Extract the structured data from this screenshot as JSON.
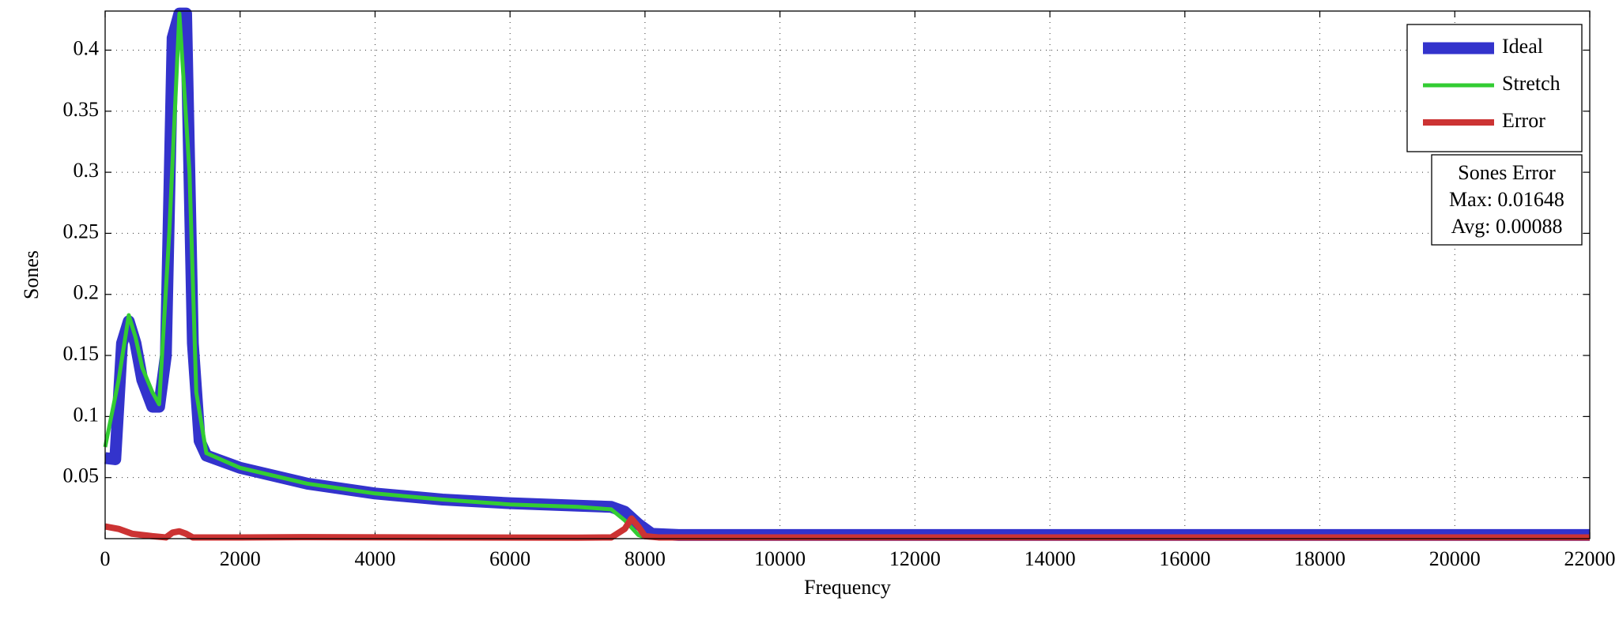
{
  "chart_data": {
    "type": "line",
    "xlabel": "Frequency",
    "ylabel": "Sones",
    "xlim": [
      0,
      22000
    ],
    "xticks": [
      0,
      2000,
      4000,
      6000,
      8000,
      10000,
      12000,
      14000,
      16000,
      18000,
      20000,
      22000
    ],
    "ylim": [
      0,
      0.432
    ],
    "yticks": [
      0.05,
      0.1,
      0.15,
      0.2,
      0.25,
      0.3,
      0.35,
      0.4
    ],
    "grid": true,
    "legend": "upper right",
    "annotation": {
      "lines": [
        "Sones Error",
        "Max: 0.01648",
        "Avg: 0.00088"
      ]
    },
    "series": [
      {
        "name": "Ideal",
        "color": "#3333cc",
        "width": 15,
        "x": [
          0,
          150,
          250,
          350,
          450,
          550,
          700,
          800,
          900,
          1000,
          1100,
          1200,
          1300,
          1400,
          1500,
          2000,
          3000,
          4000,
          5000,
          6000,
          7000,
          7500,
          7700,
          7900,
          8100,
          8500,
          22000
        ],
        "values": [
          0.066,
          0.065,
          0.16,
          0.178,
          0.16,
          0.13,
          0.108,
          0.108,
          0.15,
          0.41,
          0.43,
          0.43,
          0.16,
          0.08,
          0.068,
          0.058,
          0.045,
          0.037,
          0.032,
          0.029,
          0.027,
          0.026,
          0.022,
          0.012,
          0.004,
          0.003,
          0.003
        ]
      },
      {
        "name": "Stretch",
        "color": "#33cc33",
        "width": 5,
        "x": [
          0,
          200,
          350,
          450,
          550,
          700,
          800,
          950,
          1100,
          1250,
          1350,
          1500,
          2000,
          3000,
          4000,
          5000,
          6000,
          7000,
          7500,
          7700,
          7900,
          8000,
          22000
        ],
        "values": [
          0.075,
          0.13,
          0.183,
          0.165,
          0.14,
          0.12,
          0.11,
          0.25,
          0.43,
          0.3,
          0.12,
          0.07,
          0.058,
          0.045,
          0.037,
          0.032,
          0.028,
          0.026,
          0.024,
          0.015,
          0.003,
          0.001,
          0.001
        ]
      },
      {
        "name": "Error",
        "color": "#cc3333",
        "width": 8,
        "x": [
          0,
          200,
          400,
          700,
          900,
          1000,
          1100,
          1200,
          1300,
          2000,
          3000,
          5000,
          7000,
          7500,
          7700,
          7800,
          7900,
          8000,
          8200,
          22000
        ],
        "values": [
          0.01,
          0.008,
          0.004,
          0.002,
          0.001,
          0.005,
          0.006,
          0.004,
          0.001,
          0.001,
          0.0012,
          0.001,
          0.0008,
          0.001,
          0.008,
          0.0165,
          0.01,
          0.002,
          0.001,
          0.001
        ]
      }
    ]
  }
}
